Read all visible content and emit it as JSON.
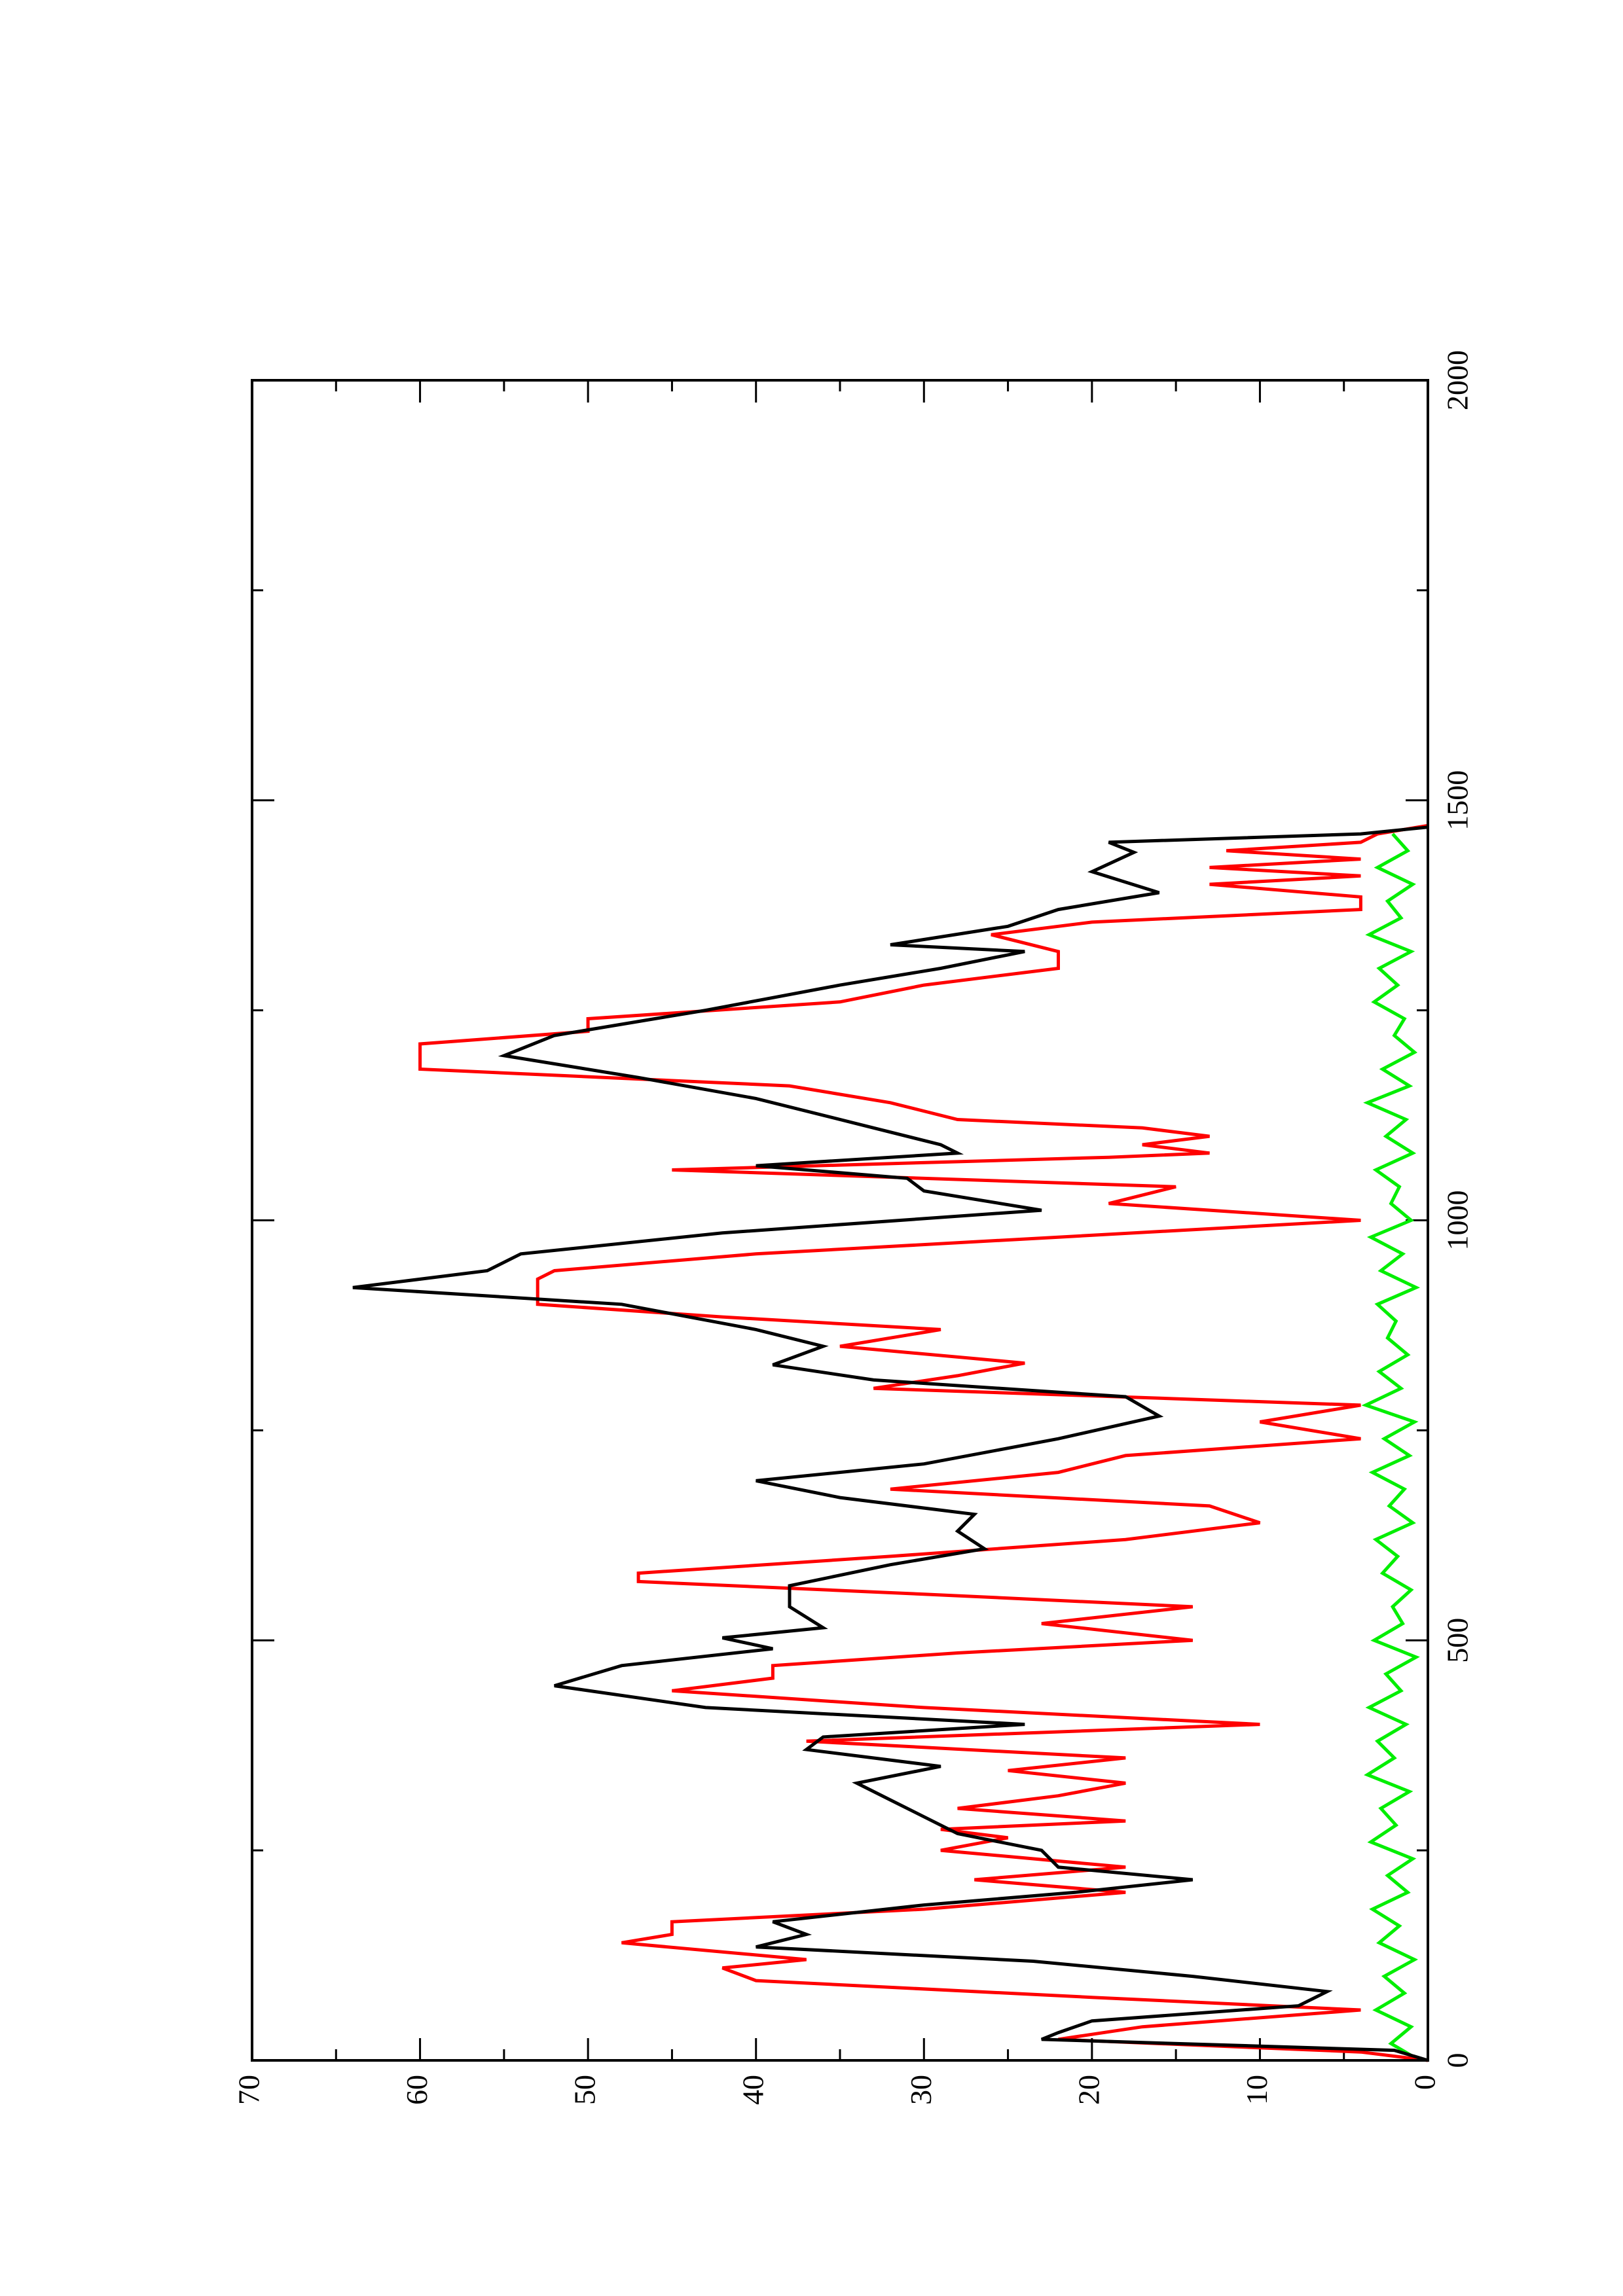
{
  "chart_data": {
    "type": "line",
    "xlim": [
      0,
      2000
    ],
    "xticks": [
      0,
      500,
      1000,
      1500,
      2000
    ],
    "xminorticks": [
      250,
      750,
      1250,
      1750
    ],
    "ylim": [
      0,
      70
    ],
    "yticks": [
      0,
      10,
      20,
      30,
      40,
      50,
      60,
      70
    ],
    "yminorticks": [
      5,
      15,
      25,
      35,
      45,
      55,
      65
    ],
    "series": [
      {
        "color": "#000000",
        "x": [
          0,
          12,
          25,
          33,
          47,
          65,
          82,
          100,
          118,
          135,
          150,
          165,
          185,
          200,
          215,
          230,
          250,
          270,
          290,
          310,
          330,
          350,
          370,
          385,
          400,
          420,
          446,
          470,
          490,
          503,
          515,
          540,
          565,
          590,
          609,
          630,
          650,
          670,
          690,
          710,
          740,
          767,
          790,
          810,
          828,
          850,
          870,
          900,
          920,
          940,
          960,
          985,
          1012,
          1035,
          1050,
          1065,
          1080,
          1090,
          1110,
          1145,
          1170,
          1196,
          1220,
          1250,
          1280,
          1300,
          1320,
          1328,
          1350,
          1370,
          1390,
          1415,
          1438,
          1450,
          1460,
          1468
        ],
        "values": [
          0,
          2,
          23,
          22,
          20,
          7.7,
          6,
          14,
          23.5,
          40,
          37,
          39,
          30,
          21,
          14,
          22,
          23,
          28,
          30,
          32,
          34,
          29,
          37,
          36,
          24,
          43,
          52,
          48,
          39,
          42,
          36,
          38,
          38,
          32,
          26.4,
          28,
          27,
          35,
          40,
          30,
          22,
          16,
          18,
          33,
          39,
          36,
          40,
          48,
          64,
          56,
          54,
          42,
          23,
          30,
          31,
          40,
          28,
          29,
          33,
          40,
          47,
          55,
          52,
          43,
          35,
          29,
          24,
          32,
          25,
          22,
          16,
          20,
          17.5,
          19,
          4,
          0
        ]
      },
      {
        "color": "#ff0000",
        "x": [
          0,
          10,
          25,
          40,
          60,
          75,
          95,
          110,
          120,
          140,
          150,
          165,
          180,
          200,
          215,
          230,
          250,
          265,
          275,
          285,
          300,
          315,
          330,
          345,
          360,
          380,
          400,
          420,
          440,
          455,
          470,
          485,
          500,
          520,
          540,
          555,
          570,
          580,
          600,
          620,
          640,
          660,
          680,
          700,
          720,
          740,
          760,
          780,
          800,
          815,
          830,
          850,
          870,
          885,
          900,
          930,
          940,
          960,
          980,
          1000,
          1020,
          1040,
          1060,
          1075,
          1080,
          1090,
          1100,
          1110,
          1120,
          1140,
          1160,
          1180,
          1210,
          1225,
          1240,
          1260,
          1280,
          1300,
          1320,
          1340,
          1355,
          1370,
          1385,
          1400,
          1410,
          1420,
          1430,
          1440,
          1450,
          1460,
          1470
        ],
        "values": [
          0,
          4,
          22,
          17,
          4,
          20,
          40,
          42,
          37,
          48,
          45,
          45,
          30,
          18,
          27,
          18,
          29,
          25,
          29,
          18,
          28,
          22,
          18,
          25,
          18,
          37,
          10,
          30,
          45,
          39,
          39,
          28,
          14,
          23,
          14,
          30,
          47,
          47,
          32,
          18,
          10,
          13,
          32,
          22,
          18,
          4,
          10,
          4,
          33,
          28,
          24,
          35,
          29,
          42,
          53,
          53,
          52,
          40,
          22,
          4,
          19,
          15,
          45,
          19,
          13,
          17,
          13,
          17,
          28,
          32,
          38,
          60,
          60,
          50,
          50,
          35,
          30,
          22,
          22,
          26,
          20,
          4,
          4,
          13,
          4,
          13,
          4,
          12,
          4,
          3,
          0
        ]
      },
      {
        "color": "#00ee00",
        "x": [
          0,
          20,
          40,
          60,
          80,
          100,
          120,
          140,
          160,
          180,
          200,
          220,
          240,
          260,
          280,
          300,
          320,
          340,
          360,
          380,
          400,
          420,
          440,
          460,
          480,
          500,
          520,
          540,
          560,
          580,
          600,
          620,
          640,
          660,
          680,
          700,
          720,
          740,
          760,
          780,
          800,
          820,
          840,
          860,
          880,
          900,
          920,
          940,
          960,
          980,
          1000,
          1020,
          1040,
          1060,
          1080,
          1100,
          1120,
          1140,
          1160,
          1180,
          1200,
          1220,
          1240,
          1260,
          1280,
          1300,
          1320,
          1340,
          1360,
          1380,
          1400,
          1420,
          1440,
          1460
        ],
        "values": [
          0.5,
          2.2,
          1.0,
          3.1,
          1.4,
          2.6,
          0.8,
          2.9,
          1.7,
          3.3,
          1.2,
          2.4,
          0.9,
          3.4,
          1.9,
          2.8,
          1.1,
          3.6,
          2.0,
          3.0,
          1.3,
          3.5,
          1.6,
          2.5,
          0.7,
          3.2,
          1.5,
          2.1,
          1.0,
          2.7,
          1.8,
          3.1,
          0.9,
          2.3,
          1.4,
          3.3,
          1.1,
          2.6,
          0.8,
          3.7,
          1.6,
          2.9,
          1.2,
          2.4,
          1.9,
          3.0,
          0.7,
          2.8,
          1.5,
          3.4,
          1.0,
          2.2,
          1.7,
          3.1,
          0.9,
          2.5,
          1.3,
          3.6,
          1.1,
          2.7,
          0.8,
          2.0,
          1.4,
          3.2,
          1.8,
          2.9,
          1.0,
          3.5,
          1.6,
          2.4,
          0.9,
          3.0,
          1.2,
          2.1
        ]
      }
    ]
  }
}
